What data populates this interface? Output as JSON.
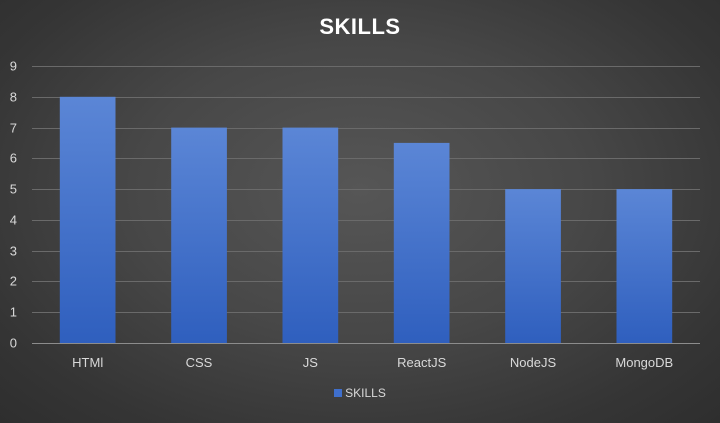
{
  "chart_data": {
    "type": "bar",
    "title": "SKILLS",
    "categories": [
      "HTMl",
      "CSS",
      "JS",
      "ReactJS",
      "NodeJS",
      "MongoDB"
    ],
    "series": [
      {
        "name": "SKILLS",
        "values": [
          8,
          7,
          7,
          6.5,
          5,
          5
        ]
      }
    ],
    "ylim": [
      0,
      9
    ],
    "yticks": [
      "0",
      "1",
      "2",
      "3",
      "4",
      "5",
      "6",
      "7",
      "8",
      "9"
    ],
    "xlabel": "",
    "ylabel": "",
    "grid": true,
    "legend_position": "bottom",
    "colors": {
      "bar_top": "#5b86d6",
      "bar_bottom": "#2f5fbe",
      "legend_swatch": "#3f6fcc",
      "gridline": "#6a6a6a",
      "axis": "#8c8c8c",
      "tick_text": "#d9d9d9",
      "title_text": "#ffffff"
    }
  }
}
